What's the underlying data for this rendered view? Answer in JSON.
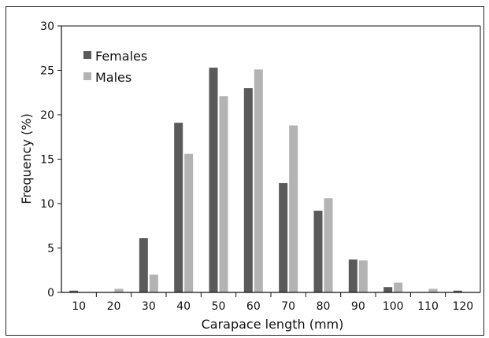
{
  "chart_data": {
    "type": "bar",
    "title": "",
    "xlabel": "Carapace length (mm)",
    "ylabel": "Frequency (%)",
    "categories": [
      "10",
      "20",
      "30",
      "40",
      "50",
      "60",
      "70",
      "80",
      "90",
      "100",
      "110",
      "120"
    ],
    "series": [
      {
        "name": "Females",
        "color": "#5a5a5a",
        "values": [
          0.2,
          0,
          6.1,
          19.1,
          25.3,
          23.0,
          12.3,
          9.2,
          3.7,
          0.6,
          0,
          0.2
        ]
      },
      {
        "name": "Males",
        "color": "#b3b3b3",
        "values": [
          0,
          0.4,
          2.0,
          15.6,
          22.1,
          25.1,
          18.8,
          10.6,
          3.6,
          1.1,
          0.4,
          0
        ]
      }
    ],
    "yticks": [
      0,
      5,
      10,
      15,
      20,
      25,
      30
    ],
    "ylim": [
      0,
      30
    ],
    "grid": false,
    "legend_position": "top-left"
  }
}
